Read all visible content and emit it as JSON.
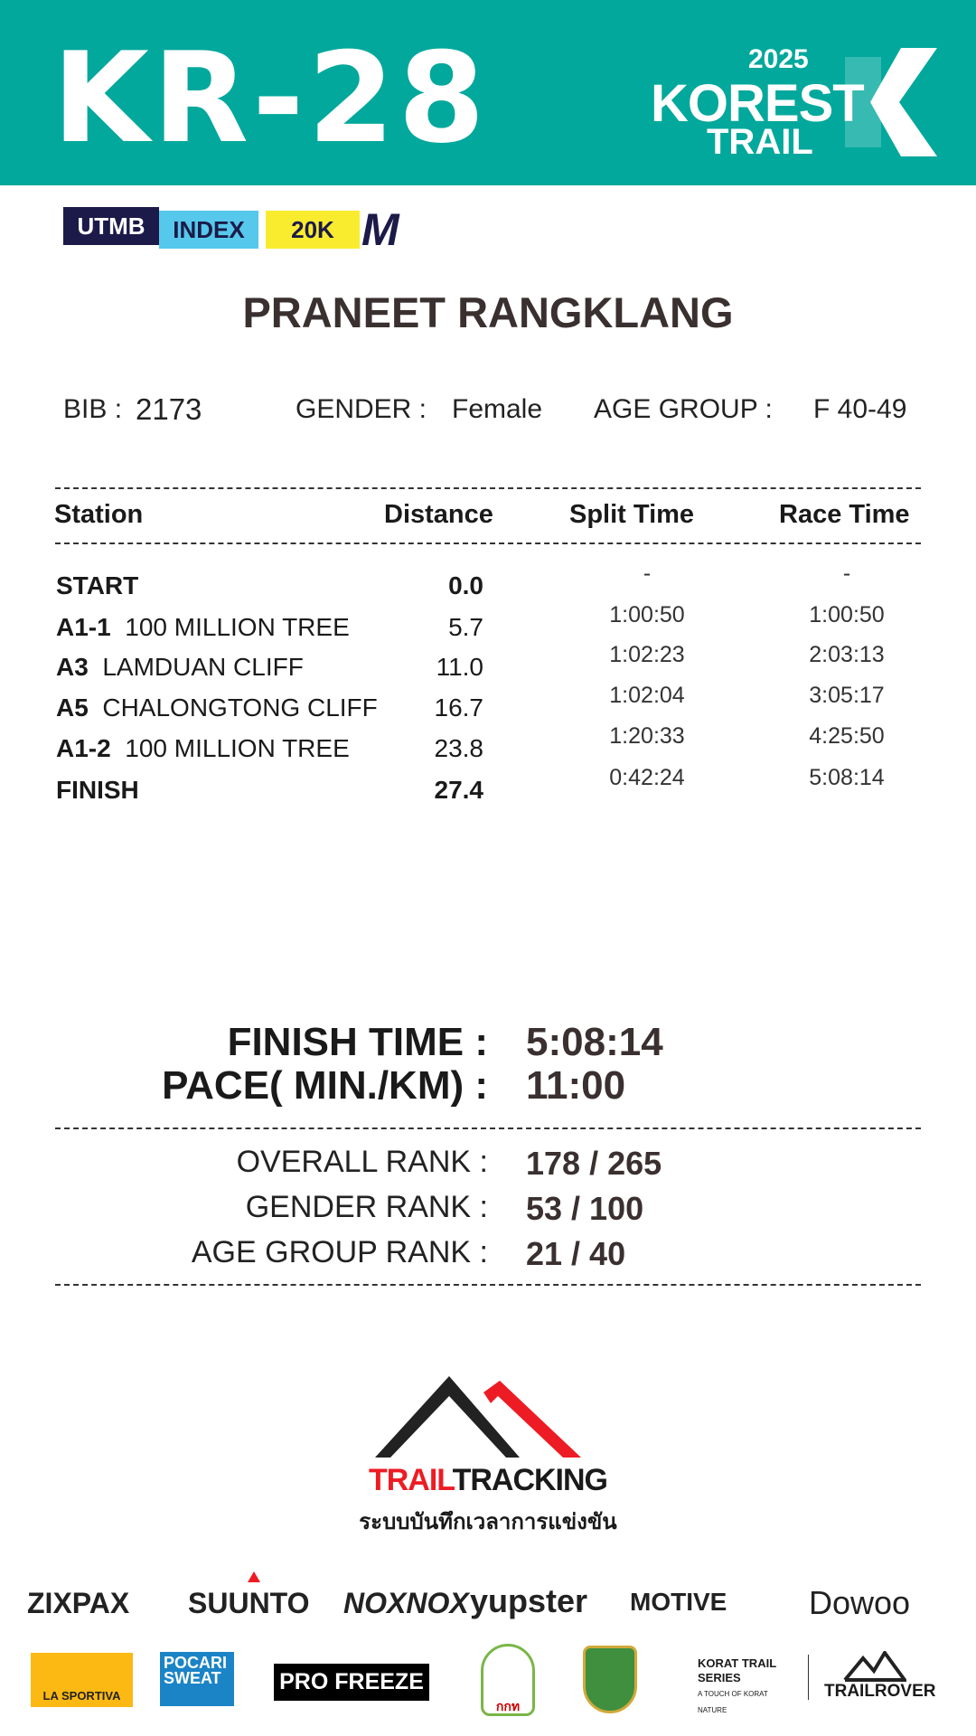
{
  "header": {
    "race_code": "KR-28",
    "logo_year": "2025",
    "logo_name": "KOREST",
    "logo_sub": "TRAIL",
    "color": "#02a89c"
  },
  "badge": {
    "utmb": "UTMB",
    "index": "INDEX",
    "category": "20K",
    "letter": "M"
  },
  "runner": {
    "name": "PRANEET RANGKLANG",
    "bib_label": "BIB :",
    "bib": "2173",
    "gender_label": "GENDER  :",
    "gender": "Female",
    "age_label": "AGE GROUP  :",
    "age": "F 40-49"
  },
  "table": {
    "headers": [
      "Station",
      "Distance",
      "Split Time",
      "Race Time"
    ],
    "rows": [
      {
        "code": "START",
        "name": "",
        "distance": "0.0",
        "split": "-",
        "race": "-"
      },
      {
        "code": "A1-1",
        "name": "100  MILLION TREE",
        "distance": "5.7",
        "split": "1:00:50",
        "race": "1:00:50"
      },
      {
        "code": "A3",
        "name": "LAMDUAN CLIFF",
        "distance": "11.0",
        "split": "1:02:23",
        "race": "2:03:13"
      },
      {
        "code": "A5",
        "name": "CHALONGTONG CLIFF",
        "distance": "16.7",
        "split": "1:02:04",
        "race": "3:05:17"
      },
      {
        "code": "A1-2",
        "name": "100  MILLION TREE",
        "distance": "23.8",
        "split": "1:20:33",
        "race": "4:25:50"
      },
      {
        "code": "FINISH",
        "name": "",
        "distance": "27.4",
        "split": "0:42:24",
        "race": "5:08:14"
      }
    ]
  },
  "summary": {
    "finish_label": "FINISH TIME :",
    "finish": "5:08:14",
    "pace_label": "PACE( MIN./KM) :",
    "pace": "11:00",
    "overall_label": "OVERALL RANK  :",
    "overall": "178 / 265",
    "gender_label": "GENDER RANK  :",
    "gender": "53 / 100",
    "age_label": "AGE GROUP RANK :",
    "age": "21 / 40"
  },
  "timing": {
    "brand_red": "TRAIL",
    "brand_black": "TRACKING",
    "tagline": "ระบบบันทึกเวลาการแข่งขัน"
  },
  "sponsors": {
    "row1": [
      "ZIXPAX",
      "SUUNTO",
      "NOXNOX",
      "yupster",
      "MOTIVE",
      "Dowoo"
    ],
    "row2": [
      "LA SPORTIVA",
      "POCARI SWEAT",
      "PRO FREEZE",
      "กกท",
      "",
      "KORAT TRAIL SERIES",
      "TRAILROVER"
    ],
    "korat_tagline": "A TOUCH OF KORAT NATURE"
  }
}
